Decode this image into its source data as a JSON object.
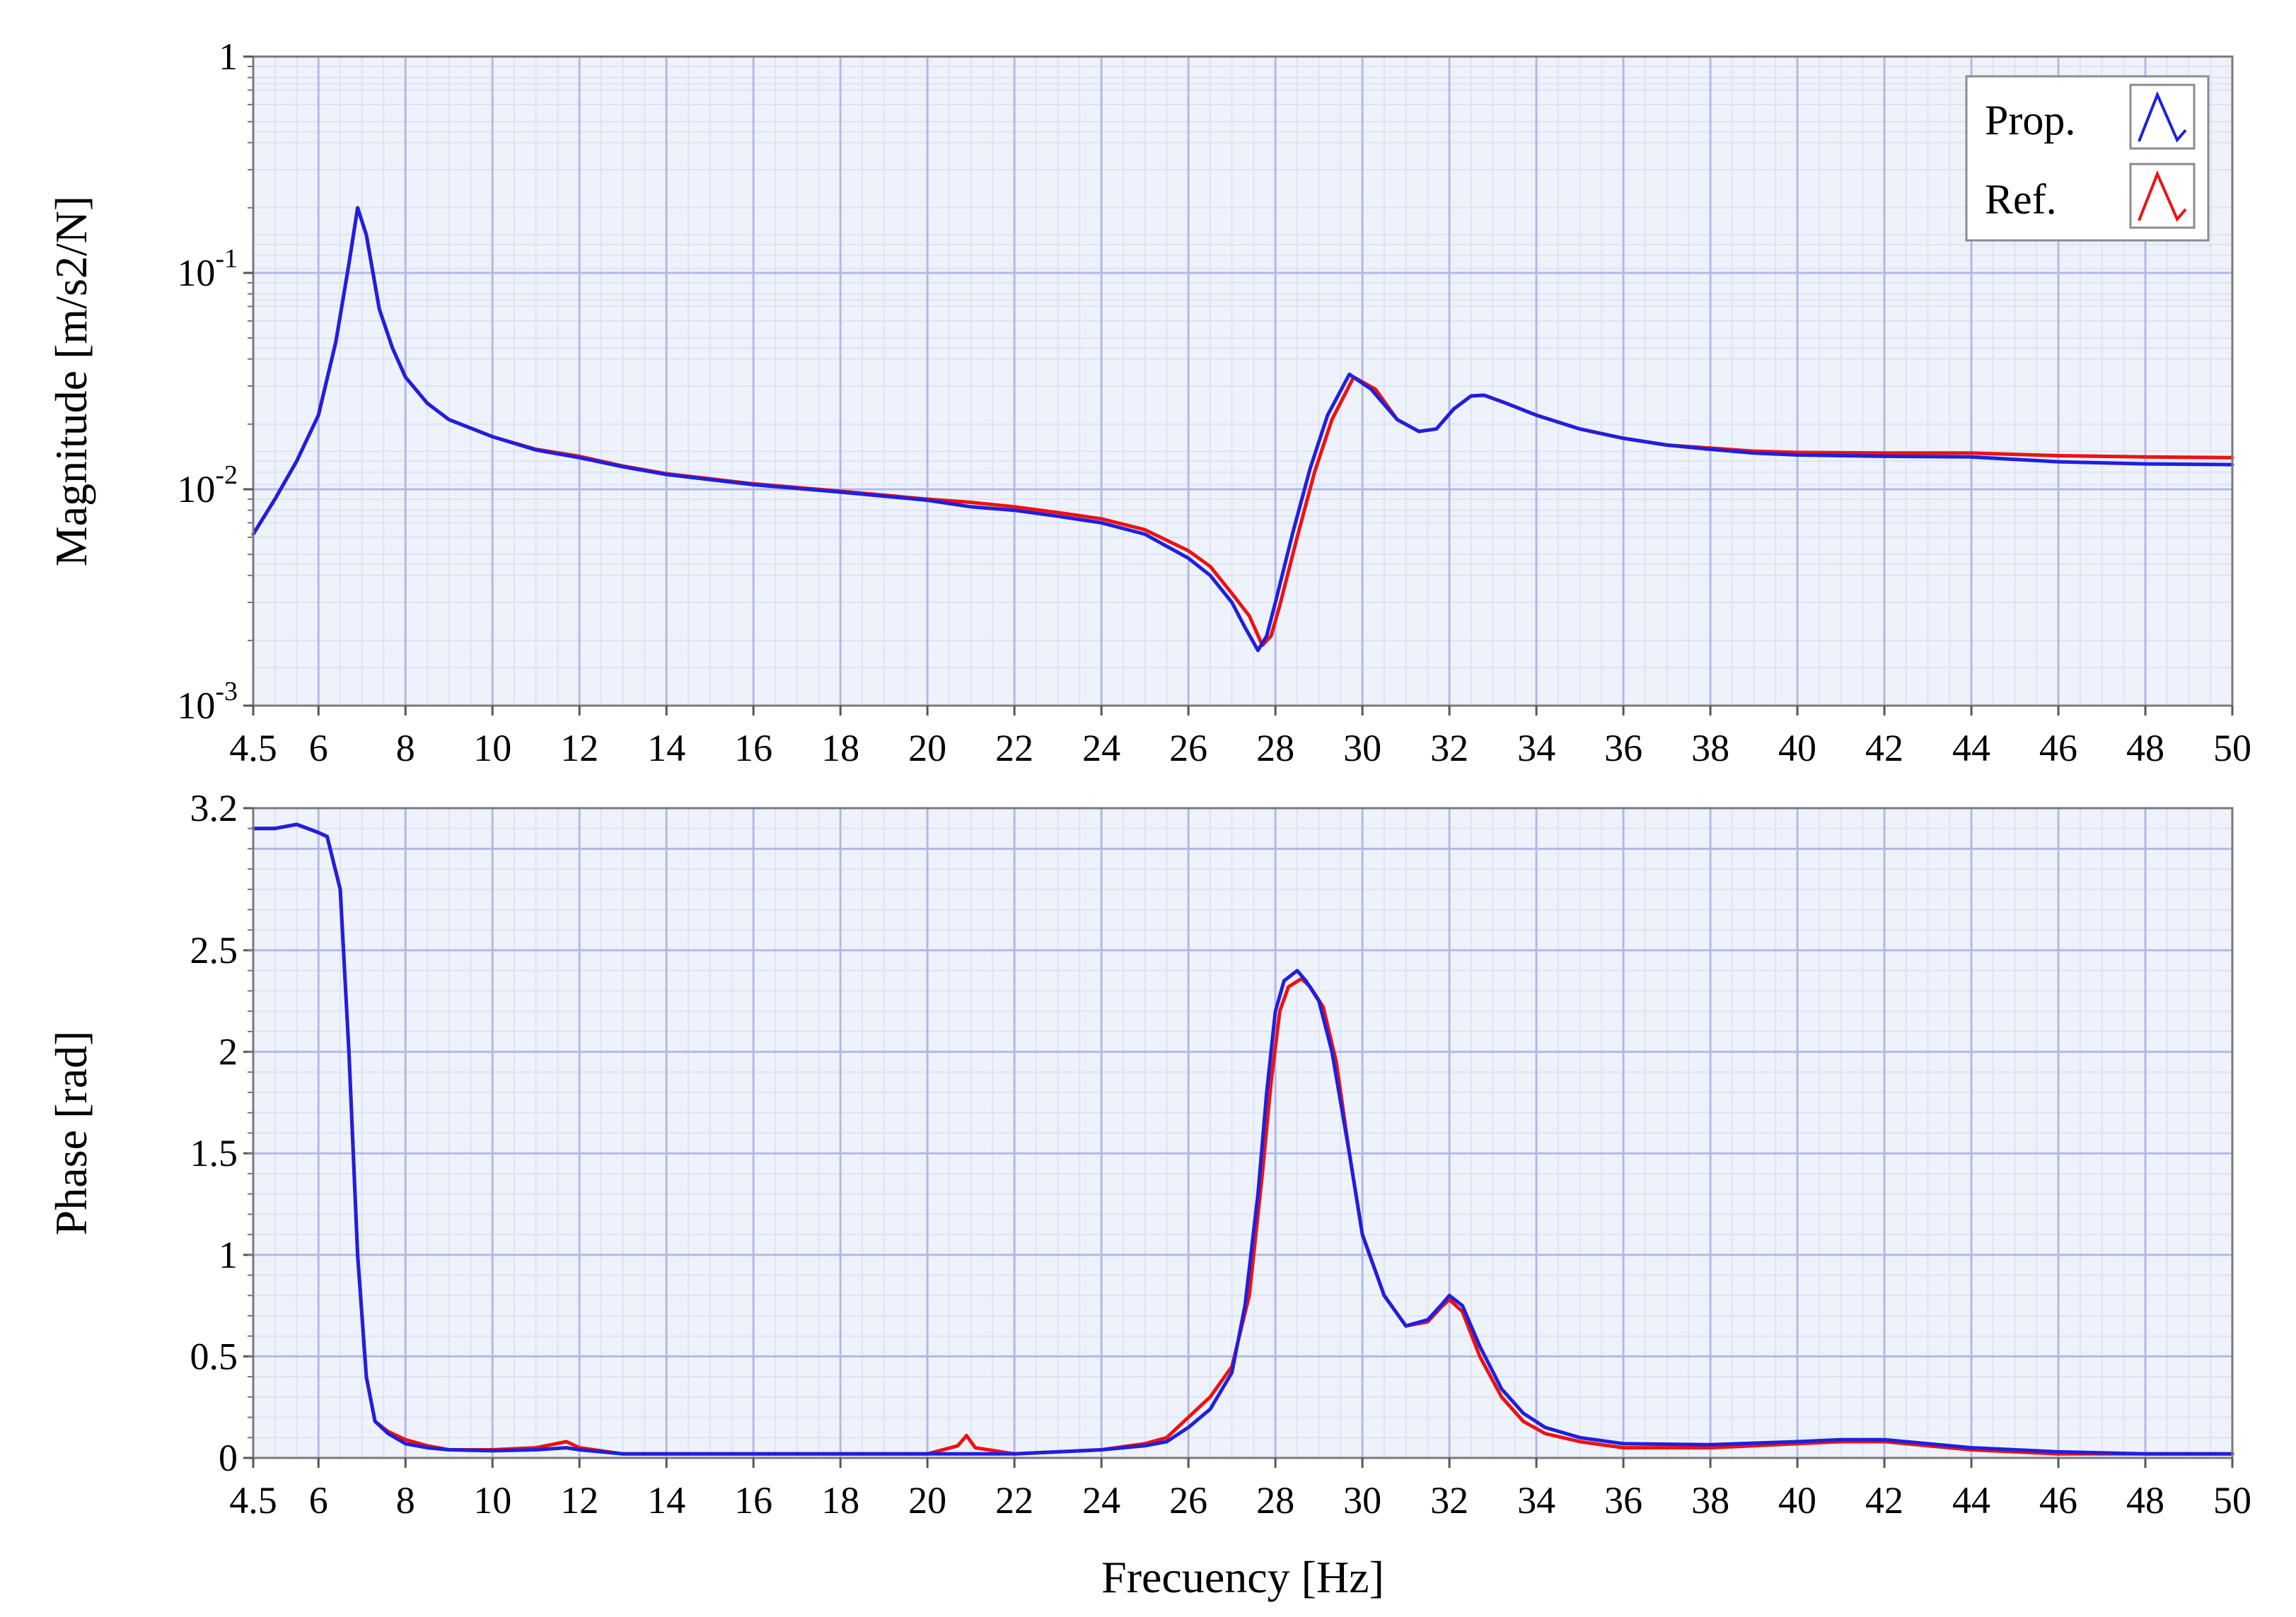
{
  "colors": {
    "prop": "#1f1fe0",
    "ref": "#ee1111",
    "plot_bg": "#eef3fb",
    "grid_major": "#b3b8e6",
    "grid_minor": "#dde3f4"
  },
  "chart_data": [
    {
      "type": "line",
      "id": "magnitude",
      "title": "",
      "xlabel": "",
      "ylabel": "Magnitude [m/s2/N]",
      "yscale": "log",
      "xlim": [
        4.5,
        50
      ],
      "ylim": [
        0.001,
        1
      ],
      "xticks": [
        4.5,
        6,
        8,
        10,
        12,
        14,
        16,
        18,
        20,
        22,
        24,
        26,
        28,
        30,
        32,
        34,
        36,
        38,
        40,
        42,
        44,
        46,
        48,
        50
      ],
      "xtick_labels": [
        "4.5",
        "6",
        "8",
        "10",
        "12",
        "14",
        "16",
        "18",
        "20",
        "22",
        "24",
        "26",
        "28",
        "30",
        "32",
        "34",
        "36",
        "38",
        "40",
        "42",
        "44",
        "46",
        "48",
        "50"
      ],
      "yticks": [
        0.001,
        0.01,
        0.1,
        1
      ],
      "ytick_labels": [
        {
          "base": "10",
          "exp": "-3"
        },
        {
          "base": "10",
          "exp": "-2"
        },
        {
          "base": "10",
          "exp": "-1"
        },
        {
          "base": "1",
          "exp": ""
        }
      ],
      "grid": true,
      "legend": {
        "position": "top-right",
        "entries": [
          {
            "label": "Prop.",
            "series": "Prop."
          },
          {
            "label": "Ref.",
            "series": "Ref."
          }
        ]
      },
      "series": [
        {
          "name": "Prop.",
          "x": [
            4.5,
            5,
            5.5,
            6,
            6.4,
            6.7,
            6.9,
            7.1,
            7.4,
            7.7,
            8,
            8.5,
            9,
            10,
            11,
            12,
            13,
            14,
            16,
            18,
            20,
            21,
            22,
            23,
            24,
            25,
            26,
            26.5,
            27,
            27.3,
            27.6,
            27.8,
            28,
            28.4,
            28.8,
            29.2,
            29.7,
            30.2,
            30.8,
            31.3,
            31.7,
            32.1,
            32.5,
            32.8,
            33.3,
            34,
            35,
            36,
            37,
            38,
            39,
            40,
            42,
            44,
            46,
            48,
            50
          ],
          "y": [
            0.0062,
            0.009,
            0.0135,
            0.022,
            0.048,
            0.11,
            0.2,
            0.15,
            0.068,
            0.045,
            0.033,
            0.025,
            0.021,
            0.0175,
            0.0152,
            0.014,
            0.0127,
            0.0117,
            0.0105,
            0.0097,
            0.0089,
            0.0083,
            0.008,
            0.0075,
            0.007,
            0.0062,
            0.0048,
            0.004,
            0.003,
            0.0023,
            0.0018,
            0.0021,
            0.003,
            0.0063,
            0.0125,
            0.022,
            0.034,
            0.029,
            0.021,
            0.0185,
            0.019,
            0.0235,
            0.027,
            0.0272,
            0.025,
            0.022,
            0.019,
            0.0172,
            0.016,
            0.0153,
            0.0147,
            0.0144,
            0.0142,
            0.0141,
            0.0134,
            0.0131,
            0.013
          ]
        },
        {
          "name": "Ref.",
          "x": [
            4.5,
            5,
            5.5,
            6,
            6.4,
            6.7,
            6.9,
            7.1,
            7.4,
            7.7,
            8,
            8.5,
            9,
            10,
            11,
            12,
            13,
            14,
            16,
            18,
            20,
            21,
            22,
            23,
            24,
            25,
            26,
            26.5,
            27,
            27.4,
            27.7,
            27.9,
            28.1,
            28.5,
            28.9,
            29.3,
            29.8,
            30.3,
            30.8,
            31.3,
            31.7,
            32.1,
            32.5,
            32.8,
            33.3,
            34,
            35,
            36,
            37,
            38,
            39,
            40,
            42,
            44,
            46,
            48,
            50
          ],
          "y": [
            0.0062,
            0.009,
            0.0135,
            0.022,
            0.048,
            0.11,
            0.2,
            0.15,
            0.068,
            0.045,
            0.033,
            0.025,
            0.021,
            0.0175,
            0.0153,
            0.0142,
            0.0128,
            0.0118,
            0.0106,
            0.0098,
            0.009,
            0.0087,
            0.0083,
            0.0078,
            0.0073,
            0.0065,
            0.0052,
            0.0044,
            0.0033,
            0.0026,
            0.0019,
            0.0021,
            0.0029,
            0.006,
            0.012,
            0.021,
            0.033,
            0.029,
            0.021,
            0.0185,
            0.019,
            0.0235,
            0.027,
            0.0272,
            0.025,
            0.022,
            0.019,
            0.0172,
            0.016,
            0.0155,
            0.015,
            0.0148,
            0.0147,
            0.0147,
            0.0143,
            0.0141,
            0.014
          ]
        }
      ]
    },
    {
      "type": "line",
      "id": "phase",
      "title": "",
      "xlabel": "Frecuency [Hz]",
      "ylabel": "Phase [rad]",
      "yscale": "linear",
      "xlim": [
        4.5,
        50
      ],
      "ylim": [
        0,
        3.2
      ],
      "xticks": [
        4.5,
        6,
        8,
        10,
        12,
        14,
        16,
        18,
        20,
        22,
        24,
        26,
        28,
        30,
        32,
        34,
        36,
        38,
        40,
        42,
        44,
        46,
        48,
        50
      ],
      "xtick_labels": [
        "4.5",
        "6",
        "8",
        "10",
        "12",
        "14",
        "16",
        "18",
        "20",
        "22",
        "24",
        "26",
        "28",
        "30",
        "32",
        "34",
        "36",
        "38",
        "40",
        "42",
        "44",
        "46",
        "48",
        "50"
      ],
      "yticks": [
        0,
        0.5,
        1,
        1.5,
        2,
        2.5,
        3.2
      ],
      "ytick_labels": [
        "0",
        "0.5",
        "1",
        "1.5",
        "2",
        "2.5",
        "3.2"
      ],
      "grid": true,
      "series": [
        {
          "name": "Prop.",
          "x": [
            4.5,
            5,
            5.5,
            6,
            6.2,
            6.5,
            6.7,
            6.9,
            7.1,
            7.3,
            7.6,
            8,
            8.5,
            9,
            10,
            11,
            11.7,
            12,
            13,
            14,
            16,
            18,
            20,
            21,
            22,
            24,
            25,
            25.5,
            26,
            26.5,
            27,
            27.3,
            27.6,
            27.8,
            28,
            28.2,
            28.5,
            28.7,
            29,
            29.3,
            29.7,
            30,
            30.5,
            31,
            31.5,
            31.8,
            32,
            32.3,
            32.7,
            33.2,
            33.7,
            34.2,
            35,
            36,
            38,
            40,
            41,
            42,
            43,
            44,
            46,
            48,
            50
          ],
          "y": [
            3.1,
            3.1,
            3.12,
            3.08,
            3.06,
            2.8,
            2.0,
            1.0,
            0.4,
            0.18,
            0.12,
            0.07,
            0.05,
            0.04,
            0.035,
            0.04,
            0.05,
            0.04,
            0.02,
            0.02,
            0.02,
            0.02,
            0.02,
            0.02,
            0.02,
            0.04,
            0.06,
            0.08,
            0.15,
            0.24,
            0.42,
            0.75,
            1.3,
            1.8,
            2.2,
            2.35,
            2.4,
            2.35,
            2.25,
            2.0,
            1.5,
            1.1,
            0.8,
            0.65,
            0.68,
            0.75,
            0.8,
            0.75,
            0.55,
            0.34,
            0.22,
            0.15,
            0.1,
            0.07,
            0.065,
            0.08,
            0.09,
            0.09,
            0.07,
            0.05,
            0.03,
            0.02,
            0.02
          ]
        },
        {
          "name": "Ref.",
          "x": [
            4.5,
            5,
            5.5,
            6,
            6.2,
            6.5,
            6.7,
            6.9,
            7.1,
            7.3,
            7.6,
            8,
            8.5,
            9,
            10,
            11,
            11.7,
            12,
            13,
            14,
            16,
            18,
            20,
            20.7,
            20.9,
            21.1,
            22,
            24,
            25,
            25.5,
            26,
            26.5,
            27,
            27.4,
            27.7,
            27.9,
            28.1,
            28.3,
            28.6,
            28.8,
            29.1,
            29.4,
            29.7,
            30,
            30.5,
            31,
            31.5,
            31.8,
            32,
            32.3,
            32.7,
            33.2,
            33.7,
            34.2,
            35,
            36,
            38,
            40,
            41,
            42,
            43,
            44,
            46,
            48,
            50
          ],
          "y": [
            3.1,
            3.1,
            3.12,
            3.08,
            3.06,
            2.8,
            2.0,
            1.0,
            0.4,
            0.18,
            0.13,
            0.09,
            0.06,
            0.04,
            0.04,
            0.05,
            0.08,
            0.05,
            0.02,
            0.02,
            0.02,
            0.02,
            0.02,
            0.06,
            0.11,
            0.05,
            0.02,
            0.04,
            0.07,
            0.1,
            0.2,
            0.3,
            0.45,
            0.8,
            1.4,
            1.85,
            2.2,
            2.32,
            2.36,
            2.32,
            2.22,
            1.95,
            1.5,
            1.1,
            0.8,
            0.65,
            0.67,
            0.74,
            0.78,
            0.72,
            0.5,
            0.3,
            0.18,
            0.12,
            0.08,
            0.05,
            0.05,
            0.07,
            0.08,
            0.08,
            0.06,
            0.04,
            0.02,
            0.02,
            0.02
          ]
        }
      ]
    }
  ]
}
